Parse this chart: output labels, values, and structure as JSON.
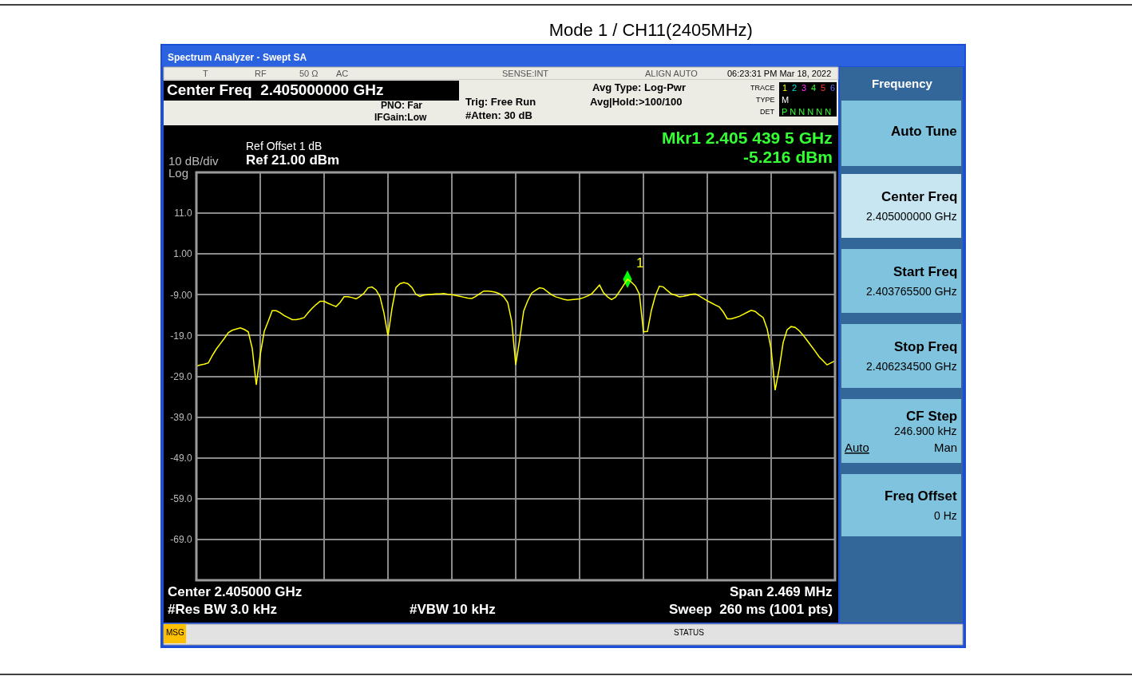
{
  "chart_data": {
    "type": "line",
    "title": "Mode 1 / CH11(2405MHz)",
    "categories": [
      null,
      null,
      null,
      null,
      null,
      null,
      null,
      null,
      null,
      null,
      null,
      null,
      null,
      null,
      null,
      null,
      null,
      null,
      null,
      null,
      null,
      null,
      null,
      null,
      null,
      null,
      null,
      null,
      null,
      null,
      null,
      null,
      null,
      null,
      null,
      null,
      null,
      null,
      null,
      null,
      null,
      null,
      null,
      null,
      null,
      null,
      null,
      null,
      null,
      null,
      null,
      null,
      null,
      null,
      null,
      null,
      null,
      null,
      null,
      null,
      null,
      null,
      null,
      null,
      null,
      null,
      null,
      null,
      null,
      null,
      null,
      null,
      null,
      null,
      null,
      null,
      null,
      null,
      null,
      null,
      null,
      null,
      null,
      null,
      null,
      null,
      null,
      null,
      null,
      null,
      null,
      null,
      null,
      null,
      null,
      null,
      null,
      null,
      null,
      null,
      null,
      null,
      null,
      null,
      null,
      null,
      null,
      null,
      null,
      null,
      null,
      null,
      null,
      null,
      null,
      null,
      null,
      null,
      null,
      null,
      null,
      null,
      null,
      null,
      null,
      null,
      null,
      null,
      null,
      null,
      null,
      null,
      null,
      null,
      null,
      null,
      null,
      null,
      null,
      null,
      null,
      null,
      null,
      null,
      null,
      null,
      null,
      null,
      null,
      null,
      null,
      null,
      null,
      null,
      null,
      null,
      null,
      null,
      null,
      null,
      null
    ],
    "ylim": [
      -79,
      21
    ],
    "yticks": [
      {
        "value": 11,
        "label": "11.0"
      },
      {
        "value": 1,
        "label": "1.00"
      },
      {
        "value": -9,
        "label": "-9.00"
      },
      {
        "value": -19,
        "label": "-19.0"
      },
      {
        "value": -29,
        "label": "-29.0"
      },
      {
        "value": -39,
        "label": "-39.0"
      },
      {
        "value": -49,
        "label": "-49.0"
      },
      {
        "value": -59,
        "label": "-59.0"
      },
      {
        "value": -69,
        "label": "-69.0"
      }
    ],
    "tick_labels": "y",
    "grid": true,
    "line_style": "solid",
    "series": [
      {
        "color": "#ffff00",
        "values": [
          -26.5,
          -26.2,
          -26.0,
          -25.7,
          -23.9,
          -22.3,
          -21.0,
          -19.7,
          -18.3,
          -17.7,
          -17.4,
          -17.1,
          -17.5,
          -18.1,
          -22.2,
          -31.1,
          -23.7,
          -18.0,
          -15.5,
          -12.9,
          -12.9,
          -13.4,
          -14.1,
          -14.6,
          -15.1,
          -15.1,
          -14.9,
          -14.6,
          -13.4,
          -12.3,
          -11.4,
          -10.6,
          -10.6,
          -11.1,
          -11.5,
          -11.9,
          -10.9,
          -9.5,
          -9.5,
          -9.7,
          -10.0,
          -9.4,
          -8.6,
          -7.3,
          -7.1,
          -7.8,
          -9.5,
          -13.5,
          -19.1,
          -12.4,
          -7.2,
          -6.3,
          -6.0,
          -6.3,
          -7.2,
          -8.9,
          -9.4,
          -9.1,
          -9.0,
          -8.9,
          -8.8,
          -8.8,
          -8.7,
          -8.9,
          -9.0,
          -9.2,
          -9.4,
          -9.6,
          -9.8,
          -9.9,
          -9.4,
          -8.7,
          -8.1,
          -8.1,
          -8.2,
          -8.4,
          -8.8,
          -9.5,
          -10.9,
          -15.5,
          -26.2,
          -19.9,
          -13.0,
          -10.5,
          -8.6,
          -7.9,
          -7.3,
          -7.5,
          -8.3,
          -9.0,
          -9.5,
          -9.8,
          -10.1,
          -10.3,
          -10.2,
          -10.1,
          -10.0,
          -9.7,
          -9.3,
          -8.8,
          -7.7,
          -6.6,
          -8.5,
          -9.5,
          -10.2,
          -9.6,
          -8.2,
          -6.7,
          -5.2,
          -5.9,
          -6.9,
          -8.9,
          -18.1,
          -18.0,
          -12.8,
          -9.2,
          -6.9,
          -7.1,
          -8.0,
          -8.8,
          -9.1,
          -9.5,
          -9.4,
          -9.2,
          -8.9,
          -8.8,
          -9.3,
          -9.9,
          -10.5,
          -11.0,
          -11.5,
          -12.0,
          -13.2,
          -14.9,
          -14.9,
          -14.6,
          -14.3,
          -13.8,
          -13.3,
          -12.8,
          -13.1,
          -13.9,
          -14.6,
          -17.4,
          -22.4,
          -32.4,
          -27.2,
          -20.7,
          -17.6,
          -16.8,
          -17.0,
          -17.8,
          -18.9,
          -20.2,
          -21.5,
          -22.8,
          -24.2,
          -25.2,
          -26.2,
          -25.7,
          -25.2
        ]
      },
      {
        "type": "scatter",
        "marker": "diamond",
        "name": "1",
        "color": "#00ff00",
        "values": [
          null,
          null,
          null,
          null,
          null,
          null,
          null,
          null,
          null,
          null,
          null,
          null,
          null,
          null,
          null,
          null,
          null,
          null,
          null,
          null,
          null,
          null,
          null,
          null,
          null,
          null,
          null,
          null,
          null,
          null,
          null,
          null,
          null,
          null,
          null,
          null,
          null,
          null,
          null,
          null,
          null,
          null,
          null,
          null,
          null,
          null,
          null,
          null,
          null,
          null,
          null,
          null,
          null,
          null,
          null,
          null,
          null,
          null,
          null,
          null,
          null,
          null,
          null,
          null,
          null,
          null,
          null,
          null,
          null,
          null,
          null,
          null,
          null,
          null,
          null,
          null,
          null,
          null,
          null,
          null,
          null,
          null,
          null,
          null,
          null,
          null,
          null,
          null,
          null,
          null,
          null,
          null,
          null,
          null,
          null,
          null,
          null,
          null,
          null,
          null,
          null,
          null,
          null,
          null,
          null,
          null,
          null,
          null,
          -5.2,
          null,
          null,
          null,
          null,
          null,
          null,
          null,
          null,
          null,
          null,
          null,
          null,
          null,
          null,
          null,
          null,
          null,
          null,
          null,
          null,
          null,
          null,
          null,
          null,
          null,
          null,
          null,
          null,
          null,
          null,
          null,
          null,
          null,
          null,
          null,
          null,
          null,
          null,
          null,
          null,
          null,
          null,
          null,
          null,
          null,
          null,
          null,
          null,
          null,
          null,
          null,
          null
        ]
      }
    ],
    "annotations": [
      "Spectrum Analyzer - Swept SA",
      "T",
      "RF",
      "50 Ω",
      "AC",
      "SENSE:INT",
      "ALIGN AUTO",
      "06:23:31 PM Mar 18, 2022",
      "Center Freq  2.405000000 GHz",
      "PNO: Far",
      "IFGain:Low",
      "Trig: Free Run",
      "#Atten: 30 dB",
      "Avg Type: Log-Pwr",
      "Avg|Hold:>100/100",
      "TRACE",
      "TYPE",
      "DET",
      "1",
      "2",
      "3",
      "4",
      "5",
      "6",
      "M",
      "P N N N N N",
      "10 dB/div",
      "Log",
      "Ref Offset 1 dB",
      "Ref 21.00 dBm",
      "Mkr1 2.405 439 5 GHz",
      "-5.216 dBm",
      "Center 2.405000 GHz",
      "#Res BW 3.0 kHz",
      "#VBW 10 kHz",
      "Span 2.469 MHz",
      "Sweep  260 ms (1001 pts)",
      "MSG",
      "STATUS",
      "Frequency",
      "Auto Tune",
      "Center Freq",
      "2.405000000 GHz",
      "Start Freq",
      "2.403765500 GHz",
      "Stop Freq",
      "2.406234500 GHz",
      "CF Step",
      "246.900 kHz",
      "Auto",
      "Man",
      "Freq Offset",
      "0 Hz"
    ]
  }
}
